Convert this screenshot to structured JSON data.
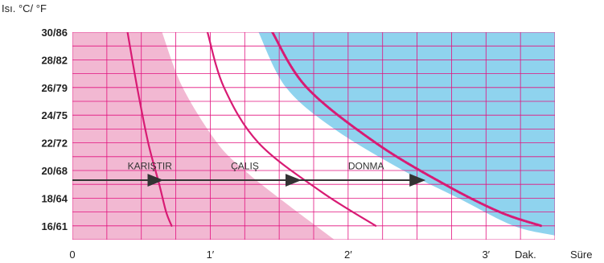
{
  "chart_data": {
    "type": "area",
    "ylabel": "Isı. °C/ °F",
    "xlabel": "Süre",
    "x_unit_label": "Dak.",
    "x_unit": "minutes",
    "xlim": [
      0,
      3.5
    ],
    "ylim": [
      15,
      30
    ],
    "x_ticks": [
      {
        "value": 0,
        "label": "0"
      },
      {
        "value": 1,
        "label": "1′"
      },
      {
        "value": 2,
        "label": "2′"
      },
      {
        "value": 3,
        "label": "3′"
      }
    ],
    "y_ticks": [
      {
        "value": 16,
        "label": "16/61"
      },
      {
        "value": 18,
        "label": "18/64"
      },
      {
        "value": 20,
        "label": "20/68"
      },
      {
        "value": 22,
        "label": "22/72"
      },
      {
        "value": 24,
        "label": "24/75"
      },
      {
        "value": 26,
        "label": "26/79"
      },
      {
        "value": 28,
        "label": "28/82"
      },
      {
        "value": 30,
        "label": "30/86"
      }
    ],
    "grid": true,
    "colors": {
      "grid": "#e2127f",
      "pink_region": "#f2b8d2",
      "blue_region": "#8fd3ee",
      "curves": "#d81b74",
      "arrow": "#333333"
    },
    "regions": [
      {
        "label": "KARIŞTIR",
        "fill": "#f2b8d2",
        "boundary": [
          {
            "x": 0.65,
            "y": 30
          },
          {
            "x": 0.8,
            "y": 26
          },
          {
            "x": 1.05,
            "y": 22
          },
          {
            "x": 1.25,
            "y": 20
          },
          {
            "x": 1.5,
            "y": 18
          },
          {
            "x": 1.9,
            "y": 15
          }
        ]
      },
      {
        "label": "ÇALIŞ",
        "fill": "#ffffff"
      },
      {
        "label": "DONMA",
        "fill": "#8fd3ee",
        "boundary": [
          {
            "x": 1.35,
            "y": 30
          },
          {
            "x": 1.55,
            "y": 26
          },
          {
            "x": 1.9,
            "y": 23
          },
          {
            "x": 2.4,
            "y": 20
          },
          {
            "x": 2.8,
            "y": 18
          },
          {
            "x": 3.2,
            "y": 16
          },
          {
            "x": 3.5,
            "y": 15.3
          }
        ]
      }
    ],
    "series": [
      {
        "style": "solid",
        "points": [
          {
            "x": 0.4,
            "y": 30
          },
          {
            "x": 0.47,
            "y": 26
          },
          {
            "x": 0.55,
            "y": 22
          },
          {
            "x": 0.63,
            "y": 19
          },
          {
            "x": 0.68,
            "y": 17
          },
          {
            "x": 0.72,
            "y": 16
          }
        ]
      },
      {
        "style": "solid",
        "points": [
          {
            "x": 0.98,
            "y": 30
          },
          {
            "x": 1.1,
            "y": 26
          },
          {
            "x": 1.35,
            "y": 22
          },
          {
            "x": 1.8,
            "y": 18.5
          },
          {
            "x": 2.2,
            "y": 16
          }
        ]
      },
      {
        "style": "dashed",
        "points": [
          {
            "x": 1.45,
            "y": 30
          },
          {
            "x": 1.7,
            "y": 26
          },
          {
            "x": 2.2,
            "y": 22
          },
          {
            "x": 2.7,
            "y": 19
          },
          {
            "x": 3.1,
            "y": 17
          },
          {
            "x": 3.4,
            "y": 16
          }
        ]
      }
    ],
    "arrows": [
      {
        "from": {
          "x": 0,
          "y": 19.3
        },
        "to": {
          "x": 0.65,
          "y": 19.3
        }
      },
      {
        "from": {
          "x": 0.65,
          "y": 19.3
        },
        "to": {
          "x": 1.65,
          "y": 19.3
        }
      },
      {
        "from": {
          "x": 1.65,
          "y": 19.3
        },
        "to": {
          "x": 2.55,
          "y": 19.3
        }
      }
    ],
    "zone_labels": [
      {
        "text": "KARIŞTIR",
        "x": 0.4,
        "y": 20.1
      },
      {
        "text": "ÇALIŞ",
        "x": 1.15,
        "y": 20.1
      },
      {
        "text": "DONMA",
        "x": 2.0,
        "y": 20.1
      }
    ]
  }
}
